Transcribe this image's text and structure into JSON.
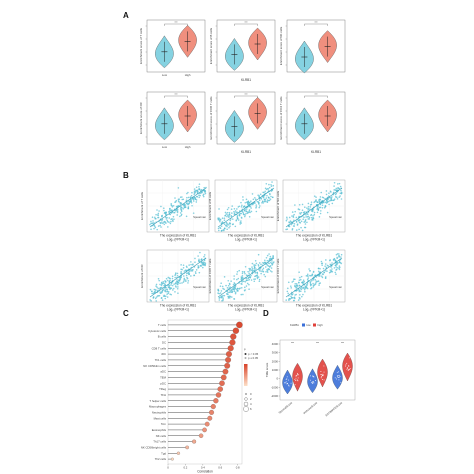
{
  "panels": {
    "A": {
      "label": "A",
      "charts": [
        {
          "ylabel": "Enrichment score of T cells",
          "xlabel": "",
          "groups": [
            "Low",
            "High"
          ],
          "medians": [
            0.35,
            0.55
          ],
          "sig": "***"
        },
        {
          "ylabel": "Enrichment score of B cells",
          "xlabel": "KLRB1",
          "groups": [
            "",
            ""
          ],
          "medians": [
            0.3,
            0.5
          ],
          "sig": "***"
        },
        {
          "ylabel": "Enrichment score of NK cells",
          "xlabel": "",
          "groups": [
            "",
            ""
          ],
          "medians": [
            0.25,
            0.45
          ],
          "sig": "***"
        },
        {
          "ylabel": "Enrichment score of DC",
          "xlabel": "",
          "groups": [
            "Low",
            "High"
          ],
          "medians": [
            0.35,
            0.5
          ],
          "sig": "***"
        },
        {
          "ylabel": "Enrichment score of CD8 T cells",
          "xlabel": "KLRB1",
          "groups": [
            "",
            ""
          ],
          "medians": [
            0.3,
            0.55
          ],
          "sig": "***"
        },
        {
          "ylabel": "Enrichment score of CD4 T cells",
          "xlabel": "KLRB1",
          "groups": [
            "",
            ""
          ],
          "medians": [
            0.35,
            0.5
          ],
          "sig": "***"
        }
      ],
      "row_label": "KLRB1",
      "colors": {
        "low": "#7fd0e0",
        "high": "#f08a78"
      }
    },
    "B": {
      "label": "B",
      "charts": [
        {
          "ylabel": "Enrichment of T cells",
          "xlabel": "The expression of KLRB1",
          "xunit": "Log₂ (FPKM+1)",
          "stat": "Spearman"
        },
        {
          "ylabel": "Enrichment of B cells",
          "xlabel": "The expression of KLRB1",
          "xunit": "Log₂ (FPKM+1)",
          "stat": "Spearman"
        },
        {
          "ylabel": "Enrichment of NK cells",
          "xlabel": "The expression of KLRB1",
          "xunit": "Log₂ (FPKM+1)",
          "stat": "Spearman"
        },
        {
          "ylabel": "Enrichment of DC",
          "xlabel": "The expression of KLRB1",
          "xunit": "Log₂ (FPKM+1)",
          "stat": "Spearman"
        },
        {
          "ylabel": "Enrichment of CD8 T cells",
          "xlabel": "The expression of KLRB1",
          "xunit": "Log₂ (FPKM+1)",
          "stat": "Spearman"
        },
        {
          "ylabel": "Enrichment of CD4 T cells",
          "xlabel": "The expression of KLRB1",
          "xunit": "Log₂ (FPKM+1)",
          "stat": "Spearman"
        }
      ],
      "color": "#5bc0d4"
    },
    "D": {
      "label": "D",
      "legend_title": "KLRB1",
      "legend_low": "low",
      "legend_high": "high",
      "ylabel": "TME score",
      "categories": [
        "StromalScore",
        "ImmuneScore",
        "ESTIMATEScore"
      ],
      "yticks": [
        "4000",
        "3000",
        "2000",
        "1000",
        "0",
        "-1000",
        "-2000"
      ],
      "sig": "***",
      "colors": {
        "low": "#3a6fd8",
        "high": "#e0403a"
      }
    }
  },
  "chart_data": {
    "type": "scatter",
    "title": "",
    "panel": "C",
    "xlabel": "Correlation",
    "xticks": [
      "0",
      "0.2",
      "0.4",
      "0.6",
      "0.8"
    ],
    "xlim": [
      0,
      0.85
    ],
    "categories": [
      "T cells",
      "Cytotoxic cells",
      "B cells",
      "DC",
      "CD8 T cells",
      "iDC",
      "Th1 cells",
      "NK CD56dim cells",
      "aDC",
      "TEM",
      "pDC",
      "TReg",
      "TFH",
      "T helper cells",
      "Macrophages",
      "Neutrophils",
      "Mast cells",
      "Tcm",
      "Eosinophils",
      "NK cells",
      "Th17 cells",
      "NK CD56bright cells",
      "Tgd",
      "Th2 cells"
    ],
    "values": [
      0.82,
      0.78,
      0.75,
      0.74,
      0.72,
      0.7,
      0.69,
      0.68,
      0.66,
      0.64,
      0.62,
      0.6,
      0.58,
      0.55,
      0.52,
      0.5,
      0.48,
      0.45,
      0.42,
      0.38,
      0.3,
      0.22,
      0.12,
      0.05
    ],
    "legend": {
      "p_title": "p",
      "p_levels": [
        "p < 0.05",
        "p ≥ 0.05"
      ],
      "count_levels": [
        "0",
        "2",
        "4",
        "6"
      ],
      "color_low": "#fde0c8",
      "color_high": "#d8432a"
    }
  }
}
